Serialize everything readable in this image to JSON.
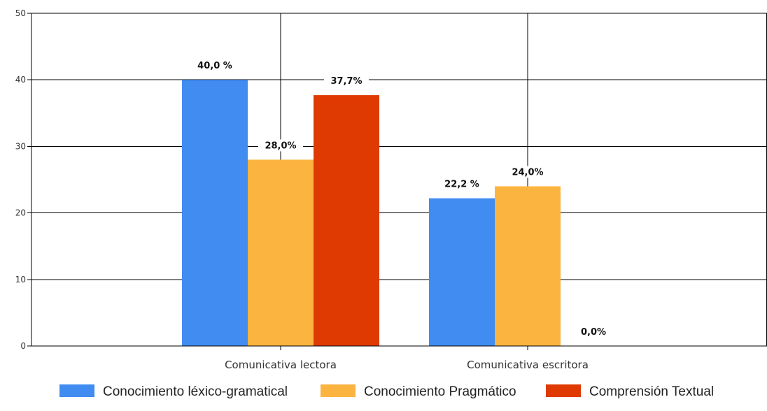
{
  "chart_data": {
    "type": "bar",
    "title": "",
    "xlabel": "",
    "ylabel": "",
    "ylim": [
      0,
      50
    ],
    "yticks": [
      0,
      10,
      20,
      30,
      40,
      50
    ],
    "grid": true,
    "legend_position": "bottom",
    "categories": [
      "Comunicativa lectora",
      "Comunicativa escritora"
    ],
    "series": [
      {
        "name": "Conocimiento léxico-gramatical",
        "color": "#418CF0",
        "values": [
          40.0,
          22.2
        ],
        "labels": [
          "40,0 %",
          "22,2 %"
        ]
      },
      {
        "name": "Conocimiento Pragmático",
        "color": "#FCB441",
        "values": [
          28.0,
          24.0
        ],
        "labels": [
          "28,0%",
          "24,0%"
        ]
      },
      {
        "name": "Comprensión Textual",
        "color": "#DF3A02",
        "values": [
          37.7,
          0.0
        ],
        "labels": [
          "37,7%",
          "0,0%"
        ]
      }
    ]
  }
}
